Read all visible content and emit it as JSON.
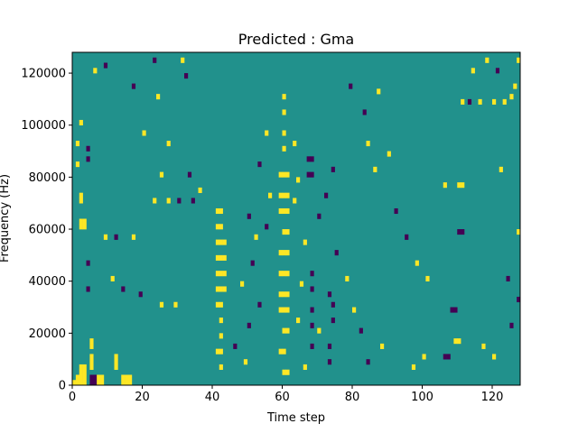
{
  "chart_data": {
    "type": "heatmap",
    "title": "Predicted : Gma",
    "xlabel": "Time step",
    "ylabel": "Frequency (Hz)",
    "xlim": [
      0,
      128
    ],
    "ylim": [
      0,
      128000
    ],
    "xticks": [
      0,
      20,
      40,
      60,
      80,
      100,
      120
    ],
    "yticks": [
      0,
      20000,
      40000,
      60000,
      80000,
      100000,
      120000
    ],
    "xtick_labels": [
      "0",
      "20",
      "40",
      "60",
      "80",
      "100",
      "120"
    ],
    "ytick_labels": [
      "0",
      "20000",
      "40000",
      "60000",
      "80000",
      "100000",
      "120000"
    ],
    "grid": false,
    "value_levels": [
      -1,
      0,
      1
    ],
    "colors": {
      "-1": "#440154",
      "0": "#21918c",
      "1": "#fde725"
    },
    "background_value": 0,
    "cell_height_hz": 2000,
    "cells": [
      {
        "t": 0,
        "f": 0,
        "v": 1
      },
      {
        "t": 1,
        "f": 0,
        "v": 1
      },
      {
        "t": 2,
        "f": 0,
        "v": 1
      },
      {
        "t": 3,
        "f": 0,
        "v": 1
      },
      {
        "t": 5,
        "f": 0,
        "v": -1
      },
      {
        "t": 6,
        "f": 0,
        "v": -1
      },
      {
        "t": 7,
        "f": 0,
        "v": 1
      },
      {
        "t": 8,
        "f": 0,
        "v": 1
      },
      {
        "t": 14,
        "f": 0,
        "v": 1
      },
      {
        "t": 15,
        "f": 0,
        "v": 1
      },
      {
        "t": 16,
        "f": 0,
        "v": 1
      },
      {
        "t": 1,
        "f": 2000,
        "v": 1
      },
      {
        "t": 2,
        "f": 2000,
        "v": 1
      },
      {
        "t": 3,
        "f": 2000,
        "v": 1
      },
      {
        "t": 5,
        "f": 2000,
        "v": -1
      },
      {
        "t": 6,
        "f": 2000,
        "v": -1
      },
      {
        "t": 7,
        "f": 2000,
        "v": 1
      },
      {
        "t": 8,
        "f": 2000,
        "v": 1
      },
      {
        "t": 14,
        "f": 2000,
        "v": 1
      },
      {
        "t": 15,
        "f": 2000,
        "v": 1
      },
      {
        "t": 16,
        "f": 2000,
        "v": 1
      },
      {
        "t": 2,
        "f": 4000,
        "v": 1
      },
      {
        "t": 3,
        "f": 4000,
        "v": 1
      },
      {
        "t": 2,
        "f": 6000,
        "v": 1
      },
      {
        "t": 3,
        "f": 6000,
        "v": 1
      },
      {
        "t": 5,
        "f": 6000,
        "v": 1
      },
      {
        "t": 12,
        "f": 6000,
        "v": 1
      },
      {
        "t": 5,
        "f": 8000,
        "v": 1
      },
      {
        "t": 12,
        "f": 8000,
        "v": 1
      },
      {
        "t": 5,
        "f": 10000,
        "v": 1
      },
      {
        "t": 12,
        "f": 10000,
        "v": 1
      },
      {
        "t": 5,
        "f": 14000,
        "v": 1
      },
      {
        "t": 5,
        "f": 16000,
        "v": 1
      },
      {
        "t": 2,
        "f": 60000,
        "v": 1
      },
      {
        "t": 3,
        "f": 60000,
        "v": 1
      },
      {
        "t": 2,
        "f": 62000,
        "v": 1
      },
      {
        "t": 3,
        "f": 62000,
        "v": 1
      },
      {
        "t": 4,
        "f": 36000,
        "v": -1
      },
      {
        "t": 4,
        "f": 46000,
        "v": -1
      },
      {
        "t": 4,
        "f": 86000,
        "v": -1
      },
      {
        "t": 4,
        "f": 90000,
        "v": -1
      },
      {
        "t": 1,
        "f": 84000,
        "v": 1
      },
      {
        "t": 2,
        "f": 100000,
        "v": 1
      },
      {
        "t": 1,
        "f": 92000,
        "v": 1
      },
      {
        "t": 2,
        "f": 72000,
        "v": 1
      },
      {
        "t": 2,
        "f": 70000,
        "v": 1
      },
      {
        "t": 41,
        "f": 66000,
        "v": 1
      },
      {
        "t": 42,
        "f": 66000,
        "v": 1
      },
      {
        "t": 41,
        "f": 60000,
        "v": 1
      },
      {
        "t": 42,
        "f": 60000,
        "v": 1
      },
      {
        "t": 41,
        "f": 54000,
        "v": 1
      },
      {
        "t": 42,
        "f": 54000,
        "v": 1
      },
      {
        "t": 43,
        "f": 54000,
        "v": 1
      },
      {
        "t": 41,
        "f": 48000,
        "v": 1
      },
      {
        "t": 42,
        "f": 48000,
        "v": 1
      },
      {
        "t": 43,
        "f": 48000,
        "v": 1
      },
      {
        "t": 41,
        "f": 42000,
        "v": 1
      },
      {
        "t": 42,
        "f": 42000,
        "v": 1
      },
      {
        "t": 43,
        "f": 42000,
        "v": 1
      },
      {
        "t": 41,
        "f": 36000,
        "v": 1
      },
      {
        "t": 42,
        "f": 36000,
        "v": 1
      },
      {
        "t": 43,
        "f": 36000,
        "v": 1
      },
      {
        "t": 41,
        "f": 30000,
        "v": 1
      },
      {
        "t": 42,
        "f": 30000,
        "v": 1
      },
      {
        "t": 42,
        "f": 24000,
        "v": 1
      },
      {
        "t": 42,
        "f": 18000,
        "v": 1
      },
      {
        "t": 41,
        "f": 12000,
        "v": 1
      },
      {
        "t": 42,
        "f": 12000,
        "v": 1
      },
      {
        "t": 42,
        "f": 6000,
        "v": 1
      },
      {
        "t": 59,
        "f": 80000,
        "v": 1
      },
      {
        "t": 60,
        "f": 80000,
        "v": 1
      },
      {
        "t": 61,
        "f": 80000,
        "v": 1
      },
      {
        "t": 59,
        "f": 72000,
        "v": 1
      },
      {
        "t": 60,
        "f": 72000,
        "v": 1
      },
      {
        "t": 61,
        "f": 72000,
        "v": 1
      },
      {
        "t": 59,
        "f": 66000,
        "v": 1
      },
      {
        "t": 60,
        "f": 66000,
        "v": 1
      },
      {
        "t": 61,
        "f": 66000,
        "v": 1
      },
      {
        "t": 60,
        "f": 58000,
        "v": 1
      },
      {
        "t": 61,
        "f": 58000,
        "v": 1
      },
      {
        "t": 59,
        "f": 50000,
        "v": 1
      },
      {
        "t": 60,
        "f": 50000,
        "v": 1
      },
      {
        "t": 61,
        "f": 50000,
        "v": 1
      },
      {
        "t": 59,
        "f": 42000,
        "v": 1
      },
      {
        "t": 60,
        "f": 42000,
        "v": 1
      },
      {
        "t": 61,
        "f": 42000,
        "v": 1
      },
      {
        "t": 59,
        "f": 34000,
        "v": 1
      },
      {
        "t": 60,
        "f": 34000,
        "v": 1
      },
      {
        "t": 61,
        "f": 34000,
        "v": 1
      },
      {
        "t": 59,
        "f": 28000,
        "v": 1
      },
      {
        "t": 60,
        "f": 28000,
        "v": 1
      },
      {
        "t": 61,
        "f": 28000,
        "v": 1
      },
      {
        "t": 60,
        "f": 20000,
        "v": 1
      },
      {
        "t": 61,
        "f": 20000,
        "v": 1
      },
      {
        "t": 59,
        "f": 12000,
        "v": 1
      },
      {
        "t": 60,
        "f": 12000,
        "v": 1
      },
      {
        "t": 60,
        "f": 4000,
        "v": 1
      },
      {
        "t": 61,
        "f": 4000,
        "v": 1
      },
      {
        "t": 60,
        "f": 104000,
        "v": 1
      },
      {
        "t": 60,
        "f": 110000,
        "v": 1
      },
      {
        "t": 60,
        "f": 90000,
        "v": 1
      },
      {
        "t": 60,
        "f": 96000,
        "v": 1
      },
      {
        "t": 67,
        "f": 86000,
        "v": -1
      },
      {
        "t": 68,
        "f": 86000,
        "v": -1
      },
      {
        "t": 67,
        "f": 80000,
        "v": -1
      },
      {
        "t": 68,
        "f": 80000,
        "v": -1
      },
      {
        "t": 68,
        "f": 42000,
        "v": -1
      },
      {
        "t": 68,
        "f": 36000,
        "v": -1
      },
      {
        "t": 68,
        "f": 28000,
        "v": -1
      },
      {
        "t": 68,
        "f": 22000,
        "v": -1
      },
      {
        "t": 68,
        "f": 14000,
        "v": -1
      },
      {
        "t": 73,
        "f": 34000,
        "v": -1
      },
      {
        "t": 74,
        "f": 30000,
        "v": -1
      },
      {
        "t": 74,
        "f": 24000,
        "v": -1
      },
      {
        "t": 73,
        "f": 14000,
        "v": -1
      },
      {
        "t": 73,
        "f": 8000,
        "v": -1
      },
      {
        "t": 70,
        "f": 64000,
        "v": -1
      },
      {
        "t": 72,
        "f": 72000,
        "v": -1
      },
      {
        "t": 74,
        "f": 82000,
        "v": -1
      },
      {
        "t": 63,
        "f": 70000,
        "v": 1
      },
      {
        "t": 64,
        "f": 78000,
        "v": 1
      },
      {
        "t": 63,
        "f": 92000,
        "v": 1
      },
      {
        "t": 66,
        "f": 54000,
        "v": 1
      },
      {
        "t": 65,
        "f": 38000,
        "v": 1
      },
      {
        "t": 64,
        "f": 24000,
        "v": 1
      },
      {
        "t": 66,
        "f": 6000,
        "v": 1
      },
      {
        "t": 70,
        "f": 20000,
        "v": 1
      },
      {
        "t": 110,
        "f": 76000,
        "v": 1
      },
      {
        "t": 111,
        "f": 76000,
        "v": 1
      },
      {
        "t": 106,
        "f": 76000,
        "v": 1
      },
      {
        "t": 110,
        "f": 58000,
        "v": -1
      },
      {
        "t": 111,
        "f": 58000,
        "v": -1
      },
      {
        "t": 108,
        "f": 28000,
        "v": -1
      },
      {
        "t": 109,
        "f": 28000,
        "v": -1
      },
      {
        "t": 109,
        "f": 16000,
        "v": 1
      },
      {
        "t": 110,
        "f": 16000,
        "v": 1
      },
      {
        "t": 106,
        "f": 10000,
        "v": -1
      },
      {
        "t": 107,
        "f": 10000,
        "v": -1
      },
      {
        "t": 120,
        "f": 10000,
        "v": 1
      },
      {
        "t": 117,
        "f": 14000,
        "v": 1
      },
      {
        "t": 127,
        "f": 32000,
        "v": -1
      },
      {
        "t": 127,
        "f": 58000,
        "v": 1
      },
      {
        "t": 125,
        "f": 22000,
        "v": -1
      },
      {
        "t": 124,
        "f": 40000,
        "v": -1
      },
      {
        "t": 122,
        "f": 82000,
        "v": 1
      },
      {
        "t": 120,
        "f": 108000,
        "v": 1
      },
      {
        "t": 113,
        "f": 108000,
        "v": -1
      },
      {
        "t": 111,
        "f": 108000,
        "v": 1
      },
      {
        "t": 116,
        "f": 108000,
        "v": 1
      },
      {
        "t": 123,
        "f": 108000,
        "v": 1
      },
      {
        "t": 127,
        "f": 124000,
        "v": 1
      },
      {
        "t": 118,
        "f": 124000,
        "v": 1
      },
      {
        "t": 121,
        "f": 120000,
        "v": -1
      },
      {
        "t": 114,
        "f": 120000,
        "v": 1
      },
      {
        "t": 125,
        "f": 110000,
        "v": 1
      },
      {
        "t": 126,
        "f": 114000,
        "v": 1
      },
      {
        "t": 9,
        "f": 56000,
        "v": 1
      },
      {
        "t": 12,
        "f": 56000,
        "v": -1
      },
      {
        "t": 17,
        "f": 56000,
        "v": 1
      },
      {
        "t": 14,
        "f": 36000,
        "v": -1
      },
      {
        "t": 11,
        "f": 40000,
        "v": 1
      },
      {
        "t": 19,
        "f": 34000,
        "v": -1
      },
      {
        "t": 25,
        "f": 30000,
        "v": 1
      },
      {
        "t": 29,
        "f": 30000,
        "v": 1
      },
      {
        "t": 23,
        "f": 70000,
        "v": 1
      },
      {
        "t": 27,
        "f": 70000,
        "v": 1
      },
      {
        "t": 30,
        "f": 70000,
        "v": -1
      },
      {
        "t": 34,
        "f": 70000,
        "v": -1
      },
      {
        "t": 36,
        "f": 74000,
        "v": 1
      },
      {
        "t": 27,
        "f": 92000,
        "v": 1
      },
      {
        "t": 25,
        "f": 80000,
        "v": 1
      },
      {
        "t": 33,
        "f": 80000,
        "v": -1
      },
      {
        "t": 20,
        "f": 96000,
        "v": 1
      },
      {
        "t": 24,
        "f": 110000,
        "v": 1
      },
      {
        "t": 23,
        "f": 124000,
        "v": -1
      },
      {
        "t": 31,
        "f": 124000,
        "v": 1
      },
      {
        "t": 32,
        "f": 118000,
        "v": -1
      },
      {
        "t": 17,
        "f": 114000,
        "v": -1
      },
      {
        "t": 9,
        "f": 122000,
        "v": -1
      },
      {
        "t": 6,
        "f": 120000,
        "v": 1
      },
      {
        "t": 92,
        "f": 66000,
        "v": -1
      },
      {
        "t": 95,
        "f": 56000,
        "v": -1
      },
      {
        "t": 98,
        "f": 46000,
        "v": 1
      },
      {
        "t": 101,
        "f": 40000,
        "v": 1
      },
      {
        "t": 100,
        "f": 10000,
        "v": 1
      },
      {
        "t": 97,
        "f": 6000,
        "v": 1
      },
      {
        "t": 86,
        "f": 82000,
        "v": 1
      },
      {
        "t": 90,
        "f": 88000,
        "v": 1
      },
      {
        "t": 84,
        "f": 92000,
        "v": 1
      },
      {
        "t": 83,
        "f": 104000,
        "v": -1
      },
      {
        "t": 79,
        "f": 114000,
        "v": -1
      },
      {
        "t": 87,
        "f": 112000,
        "v": 1
      },
      {
        "t": 75,
        "f": 50000,
        "v": -1
      },
      {
        "t": 78,
        "f": 40000,
        "v": 1
      },
      {
        "t": 80,
        "f": 28000,
        "v": 1
      },
      {
        "t": 82,
        "f": 20000,
        "v": -1
      },
      {
        "t": 84,
        "f": 8000,
        "v": -1
      },
      {
        "t": 88,
        "f": 14000,
        "v": 1
      },
      {
        "t": 50,
        "f": 64000,
        "v": -1
      },
      {
        "t": 52,
        "f": 56000,
        "v": 1
      },
      {
        "t": 51,
        "f": 46000,
        "v": -1
      },
      {
        "t": 48,
        "f": 38000,
        "v": 1
      },
      {
        "t": 53,
        "f": 30000,
        "v": -1
      },
      {
        "t": 50,
        "f": 22000,
        "v": -1
      },
      {
        "t": 46,
        "f": 14000,
        "v": -1
      },
      {
        "t": 49,
        "f": 8000,
        "v": 1
      },
      {
        "t": 55,
        "f": 60000,
        "v": -1
      },
      {
        "t": 56,
        "f": 72000,
        "v": 1
      },
      {
        "t": 53,
        "f": 84000,
        "v": -1
      },
      {
        "t": 55,
        "f": 96000,
        "v": 1
      }
    ]
  }
}
